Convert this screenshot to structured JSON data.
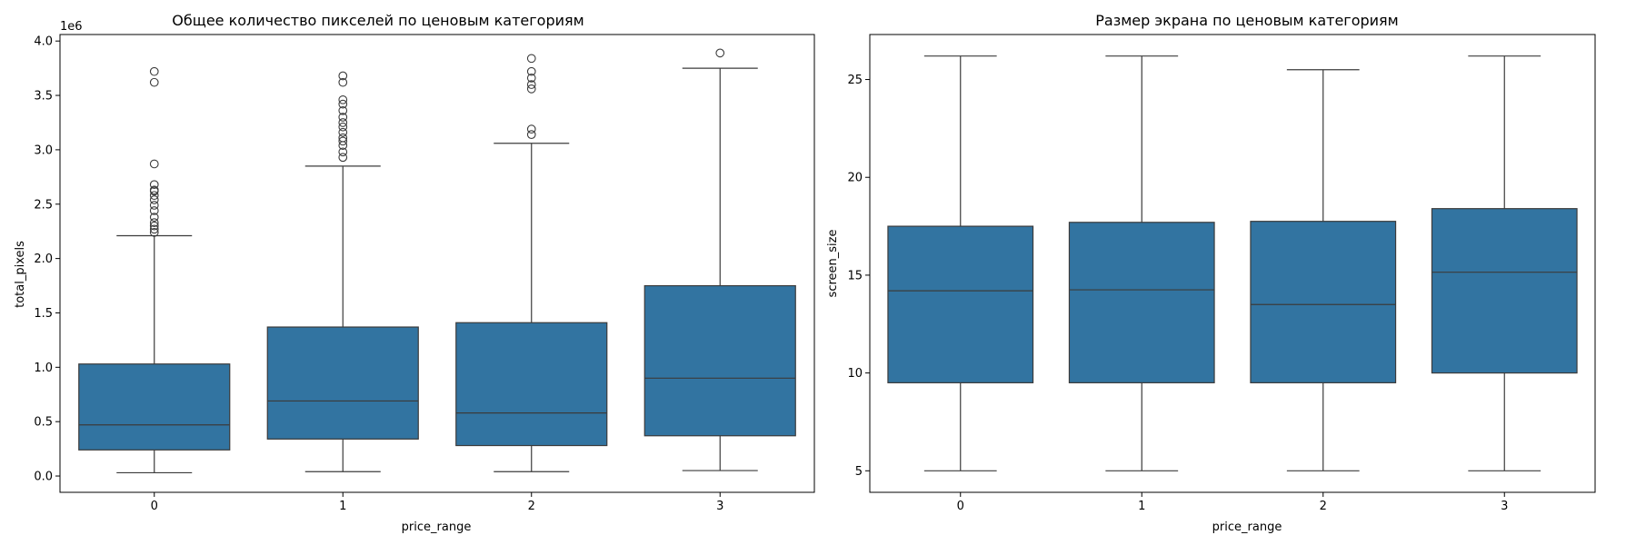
{
  "chart_data": [
    {
      "type": "box",
      "title": "Общее количество пикселей по ценовым категориям",
      "xlabel": "price_range",
      "ylabel": "total_pixels",
      "offset_text": "1e6",
      "categories": [
        "0",
        "1",
        "2",
        "3"
      ],
      "ylim": [
        -0.15,
        4.06
      ],
      "yticks": [
        0.0,
        0.5,
        1.0,
        1.5,
        2.0,
        2.5,
        3.0,
        3.5,
        4.0
      ],
      "ytick_labels": [
        "0.0",
        "0.5",
        "1.0",
        "1.5",
        "2.0",
        "2.5",
        "3.0",
        "3.5",
        "4.0"
      ],
      "color": "#3274a1",
      "boxes": [
        {
          "whislo": 0.03,
          "q1": 0.24,
          "med": 0.47,
          "q3": 1.03,
          "whishi": 2.21,
          "fliers": [
            2.24,
            2.27,
            2.3,
            2.33,
            2.38,
            2.44,
            2.49,
            2.54,
            2.58,
            2.62,
            2.63,
            2.68,
            2.87,
            3.62,
            3.72
          ]
        },
        {
          "whislo": 0.04,
          "q1": 0.34,
          "med": 0.69,
          "q3": 1.37,
          "whishi": 2.85,
          "fliers": [
            2.93,
            2.98,
            3.04,
            3.08,
            3.11,
            3.16,
            3.21,
            3.25,
            3.3,
            3.36,
            3.42,
            3.46,
            3.62,
            3.68
          ]
        },
        {
          "whislo": 0.04,
          "q1": 0.28,
          "med": 0.58,
          "q3": 1.41,
          "whishi": 3.06,
          "fliers": [
            3.14,
            3.19,
            3.56,
            3.6,
            3.66,
            3.72,
            3.84
          ]
        },
        {
          "whislo": 0.05,
          "q1": 0.37,
          "med": 0.9,
          "q3": 1.75,
          "whishi": 3.75,
          "fliers": [
            3.89
          ]
        }
      ]
    },
    {
      "type": "box",
      "title": "Размер экрана по ценовым категориям",
      "xlabel": "price_range",
      "ylabel": "screen_size",
      "categories": [
        "0",
        "1",
        "2",
        "3"
      ],
      "ylim": [
        3.9,
        27.3
      ],
      "yticks": [
        5,
        10,
        15,
        20,
        25
      ],
      "ytick_labels": [
        "5",
        "10",
        "15",
        "20",
        "25"
      ],
      "color": "#3274a1",
      "boxes": [
        {
          "whislo": 5.0,
          "q1": 9.5,
          "med": 14.2,
          "q3": 17.5,
          "whishi": 26.2,
          "fliers": []
        },
        {
          "whislo": 5.0,
          "q1": 9.5,
          "med": 14.25,
          "q3": 17.7,
          "whishi": 26.2,
          "fliers": []
        },
        {
          "whislo": 5.0,
          "q1": 9.5,
          "med": 13.5,
          "q3": 17.75,
          "whishi": 25.5,
          "fliers": []
        },
        {
          "whislo": 5.0,
          "q1": 10.0,
          "med": 15.15,
          "q3": 18.4,
          "whishi": 26.2,
          "fliers": []
        }
      ]
    }
  ]
}
